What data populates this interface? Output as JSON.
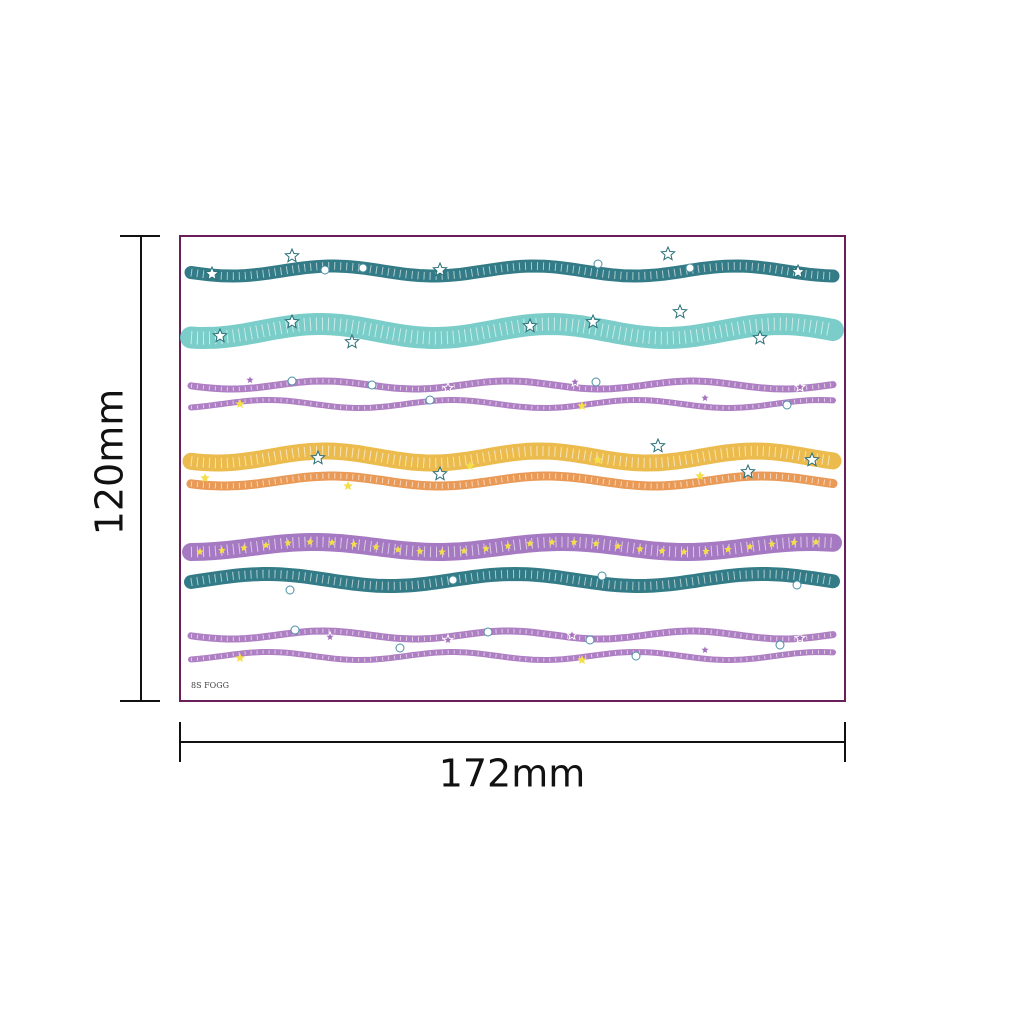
{
  "dimensions": {
    "height": "120mm",
    "width": "172mm"
  },
  "sheet": {
    "code": "8S FOGG"
  }
}
